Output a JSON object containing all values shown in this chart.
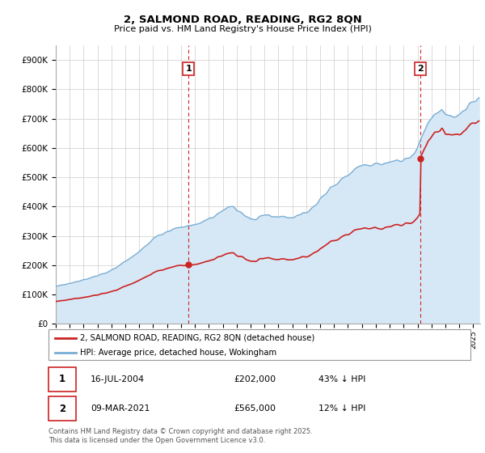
{
  "title": "2, SALMOND ROAD, READING, RG2 8QN",
  "subtitle": "Price paid vs. HM Land Registry's House Price Index (HPI)",
  "legend_line1": "2, SALMOND ROAD, READING, RG2 8QN (detached house)",
  "legend_line2": "HPI: Average price, detached house, Wokingham",
  "transaction1_date": "16-JUL-2004",
  "transaction1_price": "£202,000",
  "transaction1_note": "43% ↓ HPI",
  "transaction2_date": "09-MAR-2021",
  "transaction2_price": "£565,000",
  "transaction2_note": "12% ↓ HPI",
  "footer": "Contains HM Land Registry data © Crown copyright and database right 2025.\nThis data is licensed under the Open Government Licence v3.0.",
  "hpi_color": "#7aadd4",
  "hpi_fill_color": "#d6e8f5",
  "price_color": "#cc2222",
  "vline_color": "#cc2222",
  "marker_color": "#cc2222",
  "background_color": "#ffffff",
  "grid_color": "#cccccc",
  "ylim": [
    0,
    950000
  ],
  "yticks": [
    0,
    100000,
    200000,
    300000,
    400000,
    500000,
    600000,
    700000,
    800000,
    900000
  ],
  "xlim_start": 1995.0,
  "xlim_end": 2025.5,
  "t1": 2004.537,
  "t2": 2021.186,
  "p1": 202000,
  "p2": 565000
}
